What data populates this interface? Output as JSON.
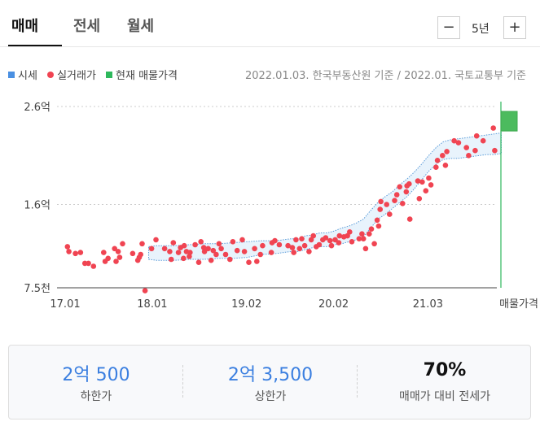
{
  "tabs": [
    {
      "label": "매매",
      "active": true
    },
    {
      "label": "전세",
      "active": false
    },
    {
      "label": "월세",
      "active": false
    }
  ],
  "period": {
    "minus": "−",
    "label": "5년",
    "plus": "+"
  },
  "legend": [
    {
      "label": "시세",
      "color": "#4a90e2",
      "shape": "square"
    },
    {
      "label": "실거래가",
      "color": "#f04452",
      "shape": "dot"
    },
    {
      "label": "현재 매물가격",
      "color": "#2eb85c",
      "shape": "square"
    }
  ],
  "source_note": "2022.01.03. 한국부동산원 기준 / 2022.01. 국토교통부 기준",
  "chart_data": {
    "type": "scatter",
    "x_ticks": [
      "17.01",
      "18.01",
      "19.02",
      "20.02",
      "21.03"
    ],
    "x_end_label": "매물가격",
    "y_ticks": [
      "2.6억",
      "1.6억",
      "7.5천"
    ],
    "y_tick_values": [
      26000,
      16000,
      7500
    ],
    "ylim": [
      7500,
      26000
    ],
    "x_unit": "months since 2017.01",
    "xlim": [
      0,
      62
    ],
    "colors": {
      "trade": "#f04452",
      "band_fill": "#e8f3fc",
      "band_line": "#5a9bd8",
      "listing": "#4cbb5e",
      "listing_line": "#2eb85c"
    },
    "price_band": {
      "x": [
        11.4,
        12.5,
        15,
        17,
        19,
        21,
        23,
        25,
        27,
        29,
        30,
        31,
        32,
        33,
        34,
        35,
        36,
        37,
        38,
        39,
        40,
        41,
        42,
        43,
        44,
        45,
        46,
        47,
        48,
        49,
        50,
        51,
        52,
        53,
        54,
        55,
        56,
        57,
        58,
        59,
        60
      ],
      "lower": [
        10400,
        10300,
        10300,
        10400,
        10400,
        10500,
        10500,
        10600,
        10900,
        11000,
        11100,
        11200,
        11200,
        11400,
        11600,
        11700,
        11700,
        11900,
        12000,
        12200,
        12400,
        12700,
        13600,
        14500,
        15000,
        15600,
        16200,
        16800,
        17600,
        18500,
        19400,
        20100,
        20600,
        20700,
        20700,
        20800,
        20900,
        21000,
        21100,
        21100,
        21200
      ],
      "upper": [
        11700,
        11800,
        11800,
        11900,
        12000,
        12000,
        12100,
        12200,
        12300,
        12300,
        12400,
        12500,
        12500,
        12800,
        12900,
        13100,
        13100,
        13300,
        13600,
        13800,
        14100,
        14500,
        15400,
        16200,
        16800,
        17300,
        18000,
        18600,
        19300,
        20100,
        21000,
        21800,
        22400,
        22600,
        22700,
        22800,
        22900,
        23000,
        23100,
        23200,
        23300
      ]
    },
    "listing_price": {
      "low": 23500,
      "high": 25500
    },
    "transactions": [
      {
        "x": 0.2,
        "y": 11700
      },
      {
        "x": 0.4,
        "y": 11200
      },
      {
        "x": 1.3,
        "y": 11000
      },
      {
        "x": 2.0,
        "y": 11100
      },
      {
        "x": 2.6,
        "y": 10000
      },
      {
        "x": 3.1,
        "y": 10000
      },
      {
        "x": 3.8,
        "y": 9700
      },
      {
        "x": 5.2,
        "y": 11100
      },
      {
        "x": 5.4,
        "y": 10200
      },
      {
        "x": 5.8,
        "y": 10500
      },
      {
        "x": 6.7,
        "y": 11500
      },
      {
        "x": 6.9,
        "y": 10200
      },
      {
        "x": 7.2,
        "y": 11200
      },
      {
        "x": 7.4,
        "y": 10600
      },
      {
        "x": 7.8,
        "y": 12000
      },
      {
        "x": 9.2,
        "y": 11000
      },
      {
        "x": 9.9,
        "y": 10300
      },
      {
        "x": 10.1,
        "y": 10600
      },
      {
        "x": 10.3,
        "y": 10900
      },
      {
        "x": 10.5,
        "y": 12000
      },
      {
        "x": 10.9,
        "y": 7200
      },
      {
        "x": 11.8,
        "y": 11500
      },
      {
        "x": 12.4,
        "y": 12400
      },
      {
        "x": 13.6,
        "y": 11500
      },
      {
        "x": 14.3,
        "y": 11200
      },
      {
        "x": 14.5,
        "y": 10400
      },
      {
        "x": 14.8,
        "y": 12100
      },
      {
        "x": 15.5,
        "y": 11100
      },
      {
        "x": 15.8,
        "y": 11600
      },
      {
        "x": 16.2,
        "y": 10500
      },
      {
        "x": 16.3,
        "y": 11800
      },
      {
        "x": 16.6,
        "y": 11200
      },
      {
        "x": 17.0,
        "y": 10700
      },
      {
        "x": 17.1,
        "y": 11100
      },
      {
        "x": 17.8,
        "y": 11900
      },
      {
        "x": 18.3,
        "y": 10100
      },
      {
        "x": 18.6,
        "y": 12200
      },
      {
        "x": 19.0,
        "y": 11600
      },
      {
        "x": 19.1,
        "y": 11200
      },
      {
        "x": 19.6,
        "y": 11500
      },
      {
        "x": 20.0,
        "y": 10300
      },
      {
        "x": 20.3,
        "y": 11300
      },
      {
        "x": 20.7,
        "y": 10900
      },
      {
        "x": 21.1,
        "y": 12000
      },
      {
        "x": 21.4,
        "y": 11500
      },
      {
        "x": 22.0,
        "y": 10900
      },
      {
        "x": 22.6,
        "y": 10400
      },
      {
        "x": 23.0,
        "y": 12200
      },
      {
        "x": 23.6,
        "y": 11300
      },
      {
        "x": 24.3,
        "y": 12400
      },
      {
        "x": 24.6,
        "y": 11200
      },
      {
        "x": 25.2,
        "y": 10100
      },
      {
        "x": 26.0,
        "y": 11500
      },
      {
        "x": 26.3,
        "y": 10200
      },
      {
        "x": 26.8,
        "y": 10900
      },
      {
        "x": 27.1,
        "y": 11800
      },
      {
        "x": 28.3,
        "y": 11100
      },
      {
        "x": 28.4,
        "y": 12100
      },
      {
        "x": 28.8,
        "y": 12300
      },
      {
        "x": 29.4,
        "y": 11900
      },
      {
        "x": 30.6,
        "y": 11800
      },
      {
        "x": 31.2,
        "y": 11600
      },
      {
        "x": 31.4,
        "y": 11100
      },
      {
        "x": 31.7,
        "y": 12400
      },
      {
        "x": 32.2,
        "y": 11500
      },
      {
        "x": 32.5,
        "y": 12500
      },
      {
        "x": 32.9,
        "y": 11800
      },
      {
        "x": 33.5,
        "y": 11200
      },
      {
        "x": 33.8,
        "y": 12400
      },
      {
        "x": 34.1,
        "y": 12800
      },
      {
        "x": 34.5,
        "y": 11700
      },
      {
        "x": 34.9,
        "y": 11900
      },
      {
        "x": 35.4,
        "y": 12400
      },
      {
        "x": 35.8,
        "y": 12600
      },
      {
        "x": 36.4,
        "y": 12300
      },
      {
        "x": 36.6,
        "y": 11800
      },
      {
        "x": 37.1,
        "y": 12400
      },
      {
        "x": 37.6,
        "y": 12100
      },
      {
        "x": 37.7,
        "y": 12800
      },
      {
        "x": 38.3,
        "y": 12700
      },
      {
        "x": 38.8,
        "y": 12800
      },
      {
        "x": 39.1,
        "y": 13200
      },
      {
        "x": 39.4,
        "y": 12200
      },
      {
        "x": 40.4,
        "y": 12500
      },
      {
        "x": 40.8,
        "y": 13000
      },
      {
        "x": 41.0,
        "y": 12500
      },
      {
        "x": 41.3,
        "y": 11500
      },
      {
        "x": 41.8,
        "y": 13000
      },
      {
        "x": 42.1,
        "y": 13500
      },
      {
        "x": 42.5,
        "y": 12000
      },
      {
        "x": 42.9,
        "y": 14400
      },
      {
        "x": 43.1,
        "y": 13800
      },
      {
        "x": 43.3,
        "y": 15500
      },
      {
        "x": 43.4,
        "y": 16300
      },
      {
        "x": 44.2,
        "y": 16000
      },
      {
        "x": 44.6,
        "y": 15000
      },
      {
        "x": 45.3,
        "y": 16400
      },
      {
        "x": 45.6,
        "y": 17000
      },
      {
        "x": 46.0,
        "y": 17800
      },
      {
        "x": 46.4,
        "y": 16100
      },
      {
        "x": 46.9,
        "y": 17300
      },
      {
        "x": 47.0,
        "y": 17900
      },
      {
        "x": 47.3,
        "y": 18100
      },
      {
        "x": 47.4,
        "y": 14500
      },
      {
        "x": 48.5,
        "y": 18400
      },
      {
        "x": 48.7,
        "y": 16600
      },
      {
        "x": 49.1,
        "y": 18300
      },
      {
        "x": 49.6,
        "y": 17400
      },
      {
        "x": 50.0,
        "y": 18700
      },
      {
        "x": 50.3,
        "y": 18000
      },
      {
        "x": 51.0,
        "y": 19800
      },
      {
        "x": 51.2,
        "y": 20500
      },
      {
        "x": 51.9,
        "y": 21000
      },
      {
        "x": 52.3,
        "y": 20000
      },
      {
        "x": 52.5,
        "y": 21400
      },
      {
        "x": 53.5,
        "y": 22500
      },
      {
        "x": 54.1,
        "y": 22300
      },
      {
        "x": 55.2,
        "y": 21800
      },
      {
        "x": 55.5,
        "y": 21000
      },
      {
        "x": 56.4,
        "y": 21500
      },
      {
        "x": 56.6,
        "y": 23000
      },
      {
        "x": 57.5,
        "y": 22500
      },
      {
        "x": 58.9,
        "y": 23800
      },
      {
        "x": 59.1,
        "y": 21500
      }
    ]
  },
  "stats": [
    {
      "value": "2억 500",
      "label": "하한가"
    },
    {
      "value": "2억 3,500",
      "label": "상한가"
    },
    {
      "value": "70%",
      "label": "매매가 대비 전세가"
    }
  ]
}
